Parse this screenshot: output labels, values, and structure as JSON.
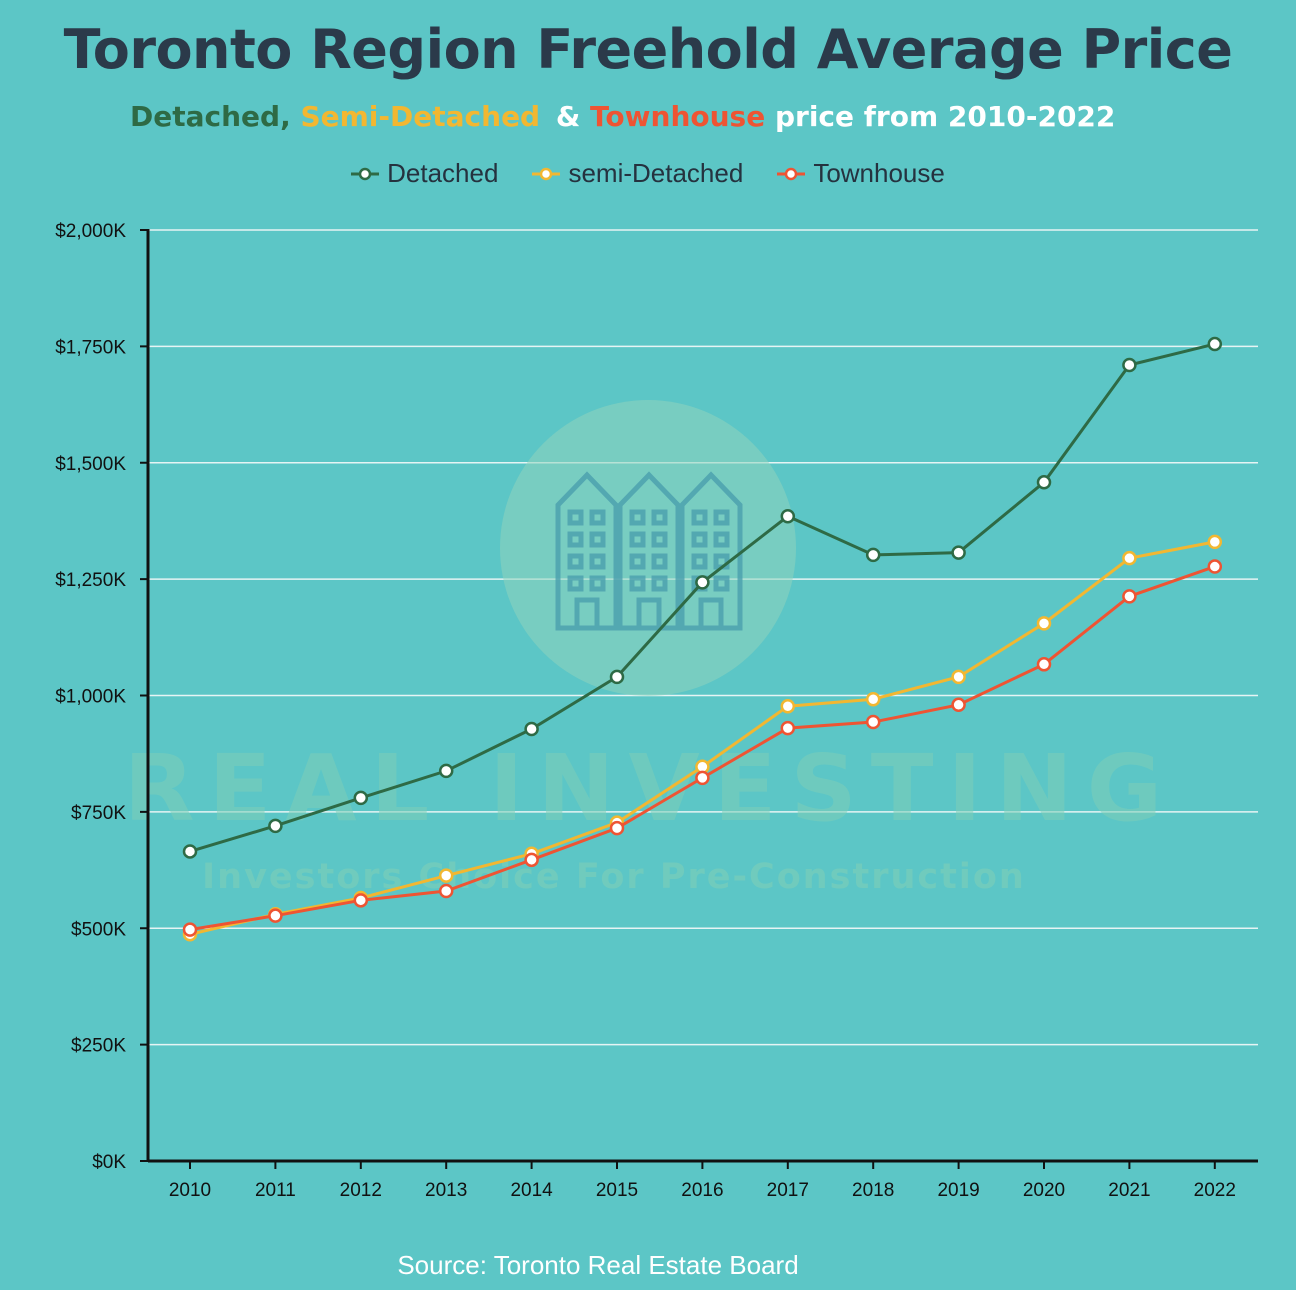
{
  "title": "Toronto Region Freehold Average Price",
  "subtitle": {
    "detached": "Detached,",
    "semi": "Semi-Detached",
    "amp": "&",
    "townhouse": "Townhouse",
    "rest": "price from 2010-2022"
  },
  "source": "Source: Toronto Real Estate Board",
  "watermark": {
    "main": "REAL INVESTING",
    "tagline": "Investors Choice For Pre-Construction",
    "icon": "townhouse-buildings-icon"
  },
  "colors": {
    "background": "#5cc6c6",
    "title": "#2b3a4a",
    "detached": "#2e6a45",
    "semi": "#f2b731",
    "townhouse": "#ee5433",
    "grid": "#e6f4f4",
    "axis": "#111111"
  },
  "chart_data": {
    "type": "line",
    "x": [
      "2010",
      "2011",
      "2012",
      "2013",
      "2014",
      "2015",
      "2016",
      "2017",
      "2018",
      "2019",
      "2020",
      "2021",
      "2022"
    ],
    "ylim": [
      0,
      2000
    ],
    "yticks": [
      0,
      250,
      500,
      750,
      1000,
      1250,
      1500,
      1750,
      2000
    ],
    "ytick_labels": [
      "$0K",
      "$250K",
      "$500K",
      "$750K",
      "$1,000K",
      "$1,250K",
      "$1,500K",
      "$1,750K",
      "$2,000K"
    ],
    "grid": true,
    "legend_position": "top-center",
    "series": [
      {
        "name": "Detached",
        "color": "#2e6a45",
        "values": [
          665,
          720,
          780,
          838,
          928,
          1040,
          1243,
          1385,
          1302,
          1307,
          1458,
          1710,
          1755
        ]
      },
      {
        "name": "semi-Detached",
        "color": "#f2b731",
        "values": [
          487,
          530,
          565,
          613,
          660,
          727,
          847,
          977,
          992,
          1040,
          1155,
          1295,
          1330
        ]
      },
      {
        "name": "Townhouse",
        "color": "#ee5433",
        "values": [
          497,
          527,
          560,
          580,
          647,
          715,
          823,
          930,
          943,
          980,
          1067,
          1213,
          1277
        ]
      }
    ]
  }
}
